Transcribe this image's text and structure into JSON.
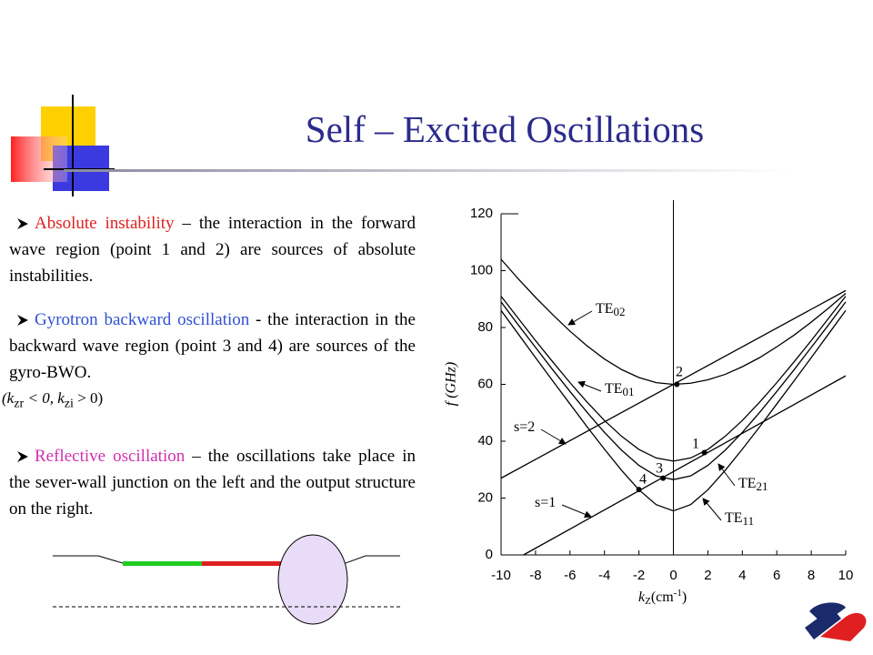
{
  "slide": {
    "title": "Self – Excited Oscillations",
    "bullets": [
      {
        "lead": "Absolute instability",
        "text": " – the interaction in the forward wave region (point 1 and 2) are sources of absolute instabilities."
      },
      {
        "lead": "Gyrotron backward oscillation",
        "text": " - the interaction in the backward wave region (point 3 and 4) are sources of the gyro-BWO."
      },
      {
        "lead": "Reflective oscillation",
        "text": " – the oscillations take place in the sever-wall junction on the left and the output structure on the right."
      }
    ],
    "formula": [
      "(k",
      "zr",
      " < 0, k",
      "zi",
      " > 0)"
    ]
  },
  "chart_data": {
    "type": "line",
    "y_label": "f (GHz)",
    "x_label": [
      "k",
      "Z",
      "(cm",
      "-1",
      ")"
    ],
    "xlim": [
      -10,
      10
    ],
    "xticks": [
      -10,
      -8,
      -6,
      -4,
      -2,
      0,
      2,
      4,
      6,
      8,
      10
    ],
    "ylim": [
      0,
      120
    ],
    "yticks": [
      0,
      20,
      40,
      60,
      80,
      100,
      120
    ],
    "series": [
      {
        "name": "TE",
        "subscript": "02",
        "color": "#000000",
        "x": [
          -10,
          -9,
          -8,
          -7,
          -6,
          -5,
          -4,
          -3,
          -2,
          -1,
          0,
          1,
          2,
          3,
          4,
          5,
          6,
          7,
          8,
          9,
          10
        ],
        "values": [
          104,
          97.1,
          90.6,
          84.5,
          78.7,
          73.5,
          68.9,
          65.2,
          62.4,
          60.6,
          60,
          60.4,
          61.6,
          63.5,
          66.2,
          69.4,
          73.2,
          77.3,
          81.9,
          86.8,
          92
        ]
      },
      {
        "name": "TE",
        "subscript": "01",
        "color": "#000000",
        "x": [
          -10,
          -9,
          -8,
          -7,
          -6,
          -5,
          -4,
          -3,
          -2,
          -1,
          0,
          1,
          2,
          3,
          4,
          5,
          6,
          7,
          8,
          9,
          10
        ],
        "values": [
          91,
          83.2,
          75.4,
          67.9,
          60.6,
          53.7,
          47.3,
          41.7,
          37.1,
          34.1,
          33,
          34.1,
          37.1,
          41.7,
          47.3,
          53.7,
          60.6,
          67.9,
          75.4,
          83.2,
          91
        ]
      },
      {
        "name": "TE",
        "subscript": "21",
        "color": "#000000",
        "x": [
          -10,
          -9,
          -8,
          -7,
          -6,
          -5,
          -4,
          -3,
          -2,
          -1,
          0,
          1,
          2,
          3,
          4,
          5,
          6,
          7,
          8,
          9,
          10
        ],
        "values": [
          89,
          80.9,
          73,
          65.1,
          57.5,
          50.1,
          43.1,
          36.8,
          31.5,
          27.8,
          26.5,
          27.8,
          31.5,
          36.8,
          43.1,
          50.1,
          57.5,
          65.1,
          73,
          80.9,
          89
        ]
      },
      {
        "name": "TE",
        "subscript": "11",
        "color": "#000000",
        "x": [
          -10,
          -9,
          -8,
          -7,
          -6,
          -5,
          -4,
          -3,
          -2,
          -1,
          0,
          1,
          2,
          3,
          4,
          5,
          6,
          7,
          8,
          9,
          10
        ],
        "values": [
          86,
          77.7,
          69.4,
          61.2,
          53.1,
          45,
          37.2,
          29.7,
          22.9,
          17.7,
          15.5,
          17.7,
          22.9,
          29.7,
          37.2,
          45,
          53.1,
          61.2,
          69.4,
          77.7,
          86
        ]
      },
      {
        "name": "s=2",
        "color": "#000000",
        "x": [
          -10,
          10
        ],
        "values": [
          27,
          93
        ]
      },
      {
        "name": "s=1",
        "color": "#000000",
        "x": [
          -8.7,
          10
        ],
        "values": [
          0,
          63
        ]
      }
    ],
    "points": {
      "labels": [
        "1",
        "2",
        "3",
        "4"
      ],
      "x": [
        1.8,
        0.2,
        -0.6,
        -2
      ],
      "values": [
        36,
        60,
        27,
        23
      ]
    }
  }
}
